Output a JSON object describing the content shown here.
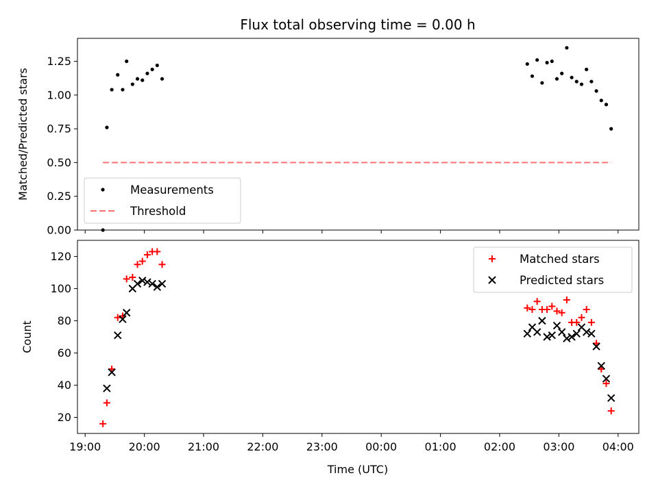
{
  "chart_data": {
    "title": "Flux total observing time = 0.00 h",
    "xlabel": "Time (UTC)",
    "x_ticks": [
      "19:00",
      "20:00",
      "21:00",
      "22:00",
      "23:00",
      "00:00",
      "01:00",
      "02:00",
      "03:00",
      "04:00"
    ],
    "xlim_hours": [
      18.87,
      28.35
    ],
    "panels": [
      {
        "type": "scatter",
        "ylabel": "Matched/Predicted stars",
        "ylim": [
          0,
          1.42
        ],
        "y_ticks": [
          "0.00",
          "0.25",
          "0.50",
          "0.75",
          "1.00",
          "1.25"
        ],
        "y_tick_values": [
          0,
          0.25,
          0.5,
          0.75,
          1.0,
          1.25
        ],
        "legend_position": "lower-left",
        "series": [
          {
            "name": "Measurements",
            "marker": "dot",
            "color": "#000000",
            "points": [
              [
                "19:18",
                0.0
              ],
              [
                "19:22",
                0.76
              ],
              [
                "19:27",
                1.04
              ],
              [
                "19:33",
                1.15
              ],
              [
                "19:38",
                1.04
              ],
              [
                "19:42",
                1.25
              ],
              [
                "19:48",
                1.08
              ],
              [
                "19:53",
                1.12
              ],
              [
                "19:58",
                1.11
              ],
              [
                "20:03",
                1.16
              ],
              [
                "20:08",
                1.19
              ],
              [
                "20:13",
                1.22
              ],
              [
                "20:18",
                1.12
              ],
              [
                "02:28",
                1.23
              ],
              [
                "02:33",
                1.14
              ],
              [
                "02:38",
                1.26
              ],
              [
                "02:43",
                1.09
              ],
              [
                "02:48",
                1.24
              ],
              [
                "02:53",
                1.25
              ],
              [
                "02:58",
                1.12
              ],
              [
                "03:03",
                1.16
              ],
              [
                "03:08",
                1.35
              ],
              [
                "03:13",
                1.13
              ],
              [
                "03:18",
                1.1
              ],
              [
                "03:23",
                1.08
              ],
              [
                "03:28",
                1.19
              ],
              [
                "03:33",
                1.1
              ],
              [
                "03:38",
                1.03
              ],
              [
                "03:43",
                0.96
              ],
              [
                "03:48",
                0.93
              ],
              [
                "03:53",
                0.75
              ]
            ]
          },
          {
            "name": "Threshold",
            "marker": "dashed-line",
            "color": "#ff7070",
            "x_start": "19:18",
            "x_end": "03:53",
            "value": 0.5
          }
        ]
      },
      {
        "type": "scatter",
        "ylabel": "Count",
        "ylim": [
          10,
          130
        ],
        "y_ticks": [
          "20",
          "40",
          "60",
          "80",
          "100",
          "120"
        ],
        "y_tick_values": [
          20,
          40,
          60,
          80,
          100,
          120
        ],
        "legend_position": "upper-right",
        "series": [
          {
            "name": "Matched stars",
            "marker": "plus",
            "color": "#ff0000",
            "points": [
              [
                "19:18",
                16
              ],
              [
                "19:22",
                29
              ],
              [
                "19:27",
                50
              ],
              [
                "19:33",
                82
              ],
              [
                "19:38",
                83
              ],
              [
                "19:42",
                106
              ],
              [
                "19:48",
                107
              ],
              [
                "19:53",
                115
              ],
              [
                "19:58",
                117
              ],
              [
                "20:03",
                121
              ],
              [
                "20:08",
                123
              ],
              [
                "20:13",
                123
              ],
              [
                "20:18",
                115
              ],
              [
                "02:28",
                88
              ],
              [
                "02:33",
                87
              ],
              [
                "02:38",
                92
              ],
              [
                "02:43",
                87
              ],
              [
                "02:48",
                87
              ],
              [
                "02:53",
                89
              ],
              [
                "02:58",
                86
              ],
              [
                "03:03",
                85
              ],
              [
                "03:08",
                93
              ],
              [
                "03:13",
                79
              ],
              [
                "03:18",
                79
              ],
              [
                "03:23",
                82
              ],
              [
                "03:28",
                87
              ],
              [
                "03:33",
                79
              ],
              [
                "03:38",
                66
              ],
              [
                "03:43",
                50
              ],
              [
                "03:48",
                41
              ],
              [
                "03:53",
                24
              ]
            ]
          },
          {
            "name": "Predicted stars",
            "marker": "x",
            "color": "#000000",
            "points": [
              [
                "19:22",
                38
              ],
              [
                "19:27",
                48
              ],
              [
                "19:33",
                71
              ],
              [
                "19:38",
                81
              ],
              [
                "19:42",
                85
              ],
              [
                "19:48",
                100
              ],
              [
                "19:53",
                103
              ],
              [
                "19:58",
                105
              ],
              [
                "20:03",
                104
              ],
              [
                "20:08",
                103
              ],
              [
                "20:13",
                101
              ],
              [
                "20:18",
                103
              ],
              [
                "02:28",
                72
              ],
              [
                "02:33",
                76
              ],
              [
                "02:38",
                73
              ],
              [
                "02:43",
                80
              ],
              [
                "02:48",
                70
              ],
              [
                "02:53",
                71
              ],
              [
                "02:58",
                77
              ],
              [
                "03:03",
                73
              ],
              [
                "03:08",
                69
              ],
              [
                "03:13",
                70
              ],
              [
                "03:18",
                72
              ],
              [
                "03:23",
                76
              ],
              [
                "03:28",
                73
              ],
              [
                "03:33",
                72
              ],
              [
                "03:38",
                64
              ],
              [
                "03:43",
                52
              ],
              [
                "03:48",
                44
              ],
              [
                "03:53",
                32
              ]
            ]
          }
        ]
      }
    ]
  }
}
